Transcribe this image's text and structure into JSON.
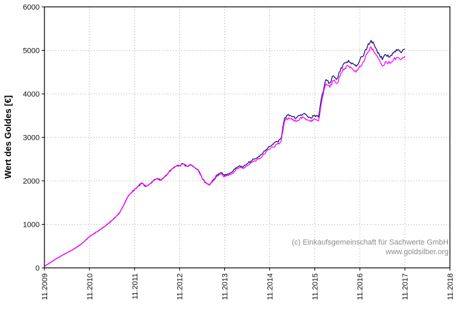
{
  "chart_data": {
    "type": "line",
    "title": "",
    "xlabel": "",
    "ylabel": "Wert des Goldes [€]",
    "xlim": [
      2009.8333,
      2018.8333
    ],
    "ylim": [
      0,
      6000
    ],
    "grid": "dotted",
    "legend": "none",
    "x_tick_labels": [
      "11.2009",
      "11.2010",
      "11.2011",
      "11.2012",
      "11.2013",
      "11.2014",
      "11.2015",
      "11.2016",
      "11.2017",
      "11.2018"
    ],
    "y_ticks": [
      0,
      1000,
      2000,
      3000,
      4000,
      5000,
      6000
    ],
    "x_start": 2009.8333,
    "x_step_years": 0.0833333,
    "annotations": [
      "(c) Einkaufsgemeinschaft für Sachwerte GmbH",
      "www.goldsilber.org"
    ],
    "annotation_color": "#8c8c8c",
    "series": [
      {
        "name": "dark-blue-line",
        "color": "#191970",
        "values": [
          40,
          90,
          145,
          200,
          250,
          300,
          345,
          390,
          440,
          500,
          560,
          640,
          720,
          775,
          830,
          885,
          950,
          1020,
          1090,
          1170,
          1260,
          1420,
          1600,
          1720,
          1800,
          1880,
          1950,
          1870,
          1920,
          2000,
          2060,
          2010,
          2090,
          2180,
          2280,
          2330,
          2350,
          2390,
          2330,
          2370,
          2310,
          2250,
          2060,
          1950,
          1900,
          2030,
          2135,
          2190,
          2120,
          2155,
          2205,
          2300,
          2350,
          2320,
          2395,
          2455,
          2505,
          2560,
          2615,
          2715,
          2790,
          2845,
          2905,
          2970,
          3450,
          3525,
          3475,
          3435,
          3500,
          3540,
          3490,
          3440,
          3505,
          3465,
          3990,
          4330,
          4255,
          4410,
          4350,
          4600,
          4715,
          4770,
          4710,
          4630,
          4775,
          4880,
          5075,
          5230,
          5085,
          4945,
          4785,
          4890,
          4850,
          4940,
          4995,
          4945,
          5030
        ]
      },
      {
        "name": "magenta-line",
        "color": "#ff00ff",
        "values": [
          40,
          90,
          145,
          200,
          250,
          300,
          345,
          390,
          440,
          500,
          560,
          640,
          720,
          775,
          830,
          885,
          950,
          1020,
          1090,
          1170,
          1260,
          1420,
          1600,
          1720,
          1800,
          1880,
          1950,
          1870,
          1920,
          2000,
          2060,
          2010,
          2090,
          2180,
          2280,
          2330,
          2350,
          2390,
          2330,
          2370,
          2310,
          2250,
          2060,
          1950,
          1900,
          2010,
          2110,
          2160,
          2090,
          2120,
          2170,
          2260,
          2310,
          2280,
          2350,
          2410,
          2460,
          2510,
          2560,
          2660,
          2730,
          2780,
          2840,
          2900,
          3380,
          3450,
          3400,
          3360,
          3420,
          3460,
          3410,
          3360,
          3420,
          3380,
          3900,
          4230,
          4150,
          4300,
          4240,
          4480,
          4590,
          4640,
          4580,
          4500,
          4640,
          4740,
          4930,
          5080,
          4940,
          4800,
          4640,
          4740,
          4700,
          4790,
          4840,
          4790,
          4870
        ]
      }
    ]
  }
}
